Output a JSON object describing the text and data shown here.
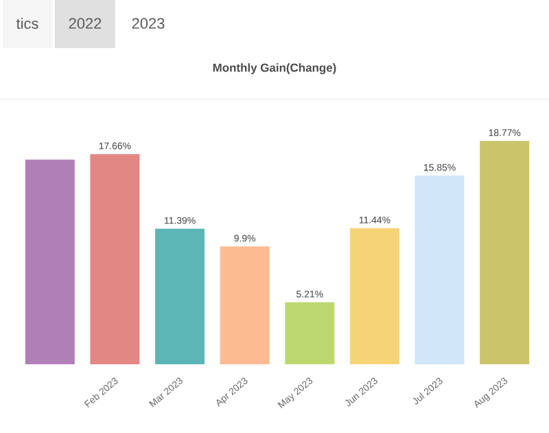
{
  "chart_data": {
    "type": "bar",
    "title": "Monthly Gain(Change)",
    "annotations": [
      "tics",
      "2022",
      "2023"
    ],
    "categories": [
      null,
      "Feb 2023",
      "Mar 2023",
      "Apr 2023",
      "May 2023",
      "Jun 2023",
      "Jul 2023",
      "Aug 2023"
    ],
    "values": [
      17.2,
      17.66,
      11.39,
      9.9,
      5.21,
      11.44,
      15.85,
      18.77
    ],
    "value_labels": [
      null,
      "17.66%",
      "11.39%",
      "9.9%",
      "5.21%",
      "11.44%",
      "15.85%",
      "18.77%"
    ],
    "colors": [
      "#b07fb8",
      "#e38785",
      "#5bb6b5",
      "#fdbb91",
      "#bdd76f",
      "#f6d476",
      "#cfe5f8",
      "#cbc46a"
    ]
  }
}
